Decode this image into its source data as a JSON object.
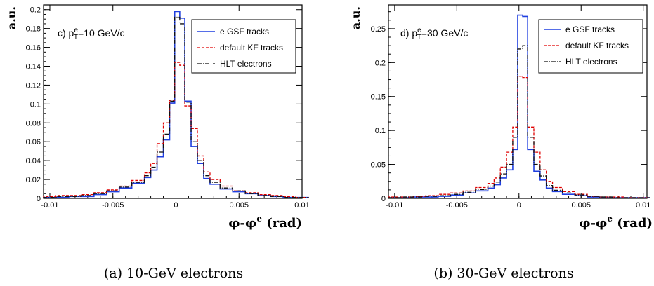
{
  "chart_data": [
    {
      "type": "line",
      "panel": "c",
      "label_prefix": "c) p",
      "label_sup": "e",
      "label_sub": "T",
      "label_suffix": "=10 GeV/c",
      "ylabel": "a.u.",
      "xlabel": "φ-φ",
      "xlabel_sup": "e",
      "xlabel_unit": " (rad)",
      "caption": "(a) 10-GeV electrons",
      "xlim": [
        -0.0105,
        0.01
      ],
      "ylim": [
        0,
        0.205
      ],
      "xticks": [
        -0.01,
        -0.005,
        0,
        0.005,
        0.01
      ],
      "xtick_labels": [
        "-0.01",
        "-0.005",
        "0",
        "0.005",
        "0.01"
      ],
      "yticks": [
        0,
        0.02,
        0.04,
        0.06,
        0.08,
        0.1,
        0.12,
        0.14,
        0.16,
        0.18,
        0.2
      ],
      "ytick_labels": [
        "0",
        "0.02",
        "0.04",
        "0.06",
        "0.08",
        "0.1",
        "0.12",
        "0.14",
        "0.16",
        "0.18",
        "0.2"
      ],
      "bin_edges": [
        -0.0105,
        -0.0095,
        -0.0085,
        -0.0075,
        -0.0065,
        -0.0055,
        -0.0045,
        -0.0035,
        -0.0025,
        -0.002,
        -0.0015,
        -0.001,
        -0.0005,
        -0.0001,
        0.0003,
        0.0007,
        0.0012,
        0.0017,
        0.0022,
        0.0027,
        0.0035,
        0.0045,
        0.0055,
        0.0065,
        0.0075,
        0.0085,
        0.0095,
        0.0105
      ],
      "legend": [
        "e GSF tracks",
        "default KF tracks",
        "HLT electrons"
      ],
      "series": [
        {
          "name": "e GSF tracks",
          "color": "#1f3fe0",
          "dash": "",
          "values": [
            0.001,
            0.001,
            0.002,
            0.002,
            0.004,
            0.007,
            0.011,
            0.016,
            0.022,
            0.03,
            0.044,
            0.062,
            0.101,
            0.198,
            0.191,
            0.103,
            0.055,
            0.037,
            0.021,
            0.015,
            0.01,
            0.007,
            0.005,
            0.003,
            0.002,
            0.001,
            0.001
          ]
        },
        {
          "name": "default KF tracks",
          "color": "#e00000",
          "dash": "4,2",
          "values": [
            0.002,
            0.003,
            0.003,
            0.004,
            0.006,
            0.009,
            0.013,
            0.019,
            0.027,
            0.037,
            0.058,
            0.08,
            0.104,
            0.144,
            0.141,
            0.098,
            0.074,
            0.045,
            0.028,
            0.02,
            0.013,
            0.008,
            0.006,
            0.004,
            0.003,
            0.002,
            0.001
          ]
        },
        {
          "name": "HLT electrons",
          "color": "#111111",
          "dash": "6,2,1,2",
          "values": [
            0.001,
            0.002,
            0.002,
            0.003,
            0.005,
            0.008,
            0.012,
            0.017,
            0.024,
            0.033,
            0.049,
            0.068,
            0.103,
            0.192,
            0.185,
            0.102,
            0.06,
            0.04,
            0.024,
            0.017,
            0.011,
            0.008,
            0.005,
            0.003,
            0.002,
            0.001,
            0.001
          ]
        }
      ]
    },
    {
      "type": "line",
      "panel": "d",
      "label_prefix": "d) p",
      "label_sup": "e",
      "label_sub": "T",
      "label_suffix": "=30 GeV/c",
      "ylabel": "a.u.",
      "xlabel": "φ-φ",
      "xlabel_sup": "e",
      "xlabel_unit": " (rad)",
      "caption": "(b) 30-GeV electrons",
      "xlim": [
        -0.0105,
        0.0103
      ],
      "ylim": [
        0,
        0.285
      ],
      "xticks": [
        -0.01,
        -0.005,
        0,
        0.005,
        0.01
      ],
      "xtick_labels": [
        "-0.01",
        "-0.005",
        "0",
        "0.005",
        "0.01"
      ],
      "yticks": [
        0,
        0.05,
        0.1,
        0.15,
        0.2,
        0.25
      ],
      "ytick_labels": [
        "0",
        "0.05",
        "0.1",
        "0.15",
        "0.2",
        "0.25"
      ],
      "bin_edges": [
        -0.0105,
        -0.0095,
        -0.0085,
        -0.0075,
        -0.0065,
        -0.0055,
        -0.0045,
        -0.0035,
        -0.0025,
        -0.002,
        -0.0015,
        -0.001,
        -0.0005,
        -0.0001,
        0.0003,
        0.0007,
        0.0012,
        0.0017,
        0.0022,
        0.0027,
        0.0035,
        0.0045,
        0.0055,
        0.0065,
        0.0075,
        0.0085,
        0.0095,
        0.0105
      ],
      "legend": [
        "e GSF tracks",
        "default KF tracks",
        "HLT electrons"
      ],
      "series": [
        {
          "name": "e GSF tracks",
          "color": "#1f3fe0",
          "dash": "",
          "values": [
            0.001,
            0.001,
            0.002,
            0.002,
            0.003,
            0.005,
            0.008,
            0.011,
            0.015,
            0.02,
            0.03,
            0.042,
            0.072,
            0.27,
            0.268,
            0.072,
            0.04,
            0.027,
            0.015,
            0.01,
            0.006,
            0.004,
            0.002,
            0.001,
            0.001,
            0.001,
            0.001
          ]
        },
        {
          "name": "default KF tracks",
          "color": "#e00000",
          "dash": "4,2",
          "values": [
            0.002,
            0.002,
            0.003,
            0.004,
            0.006,
            0.008,
            0.011,
            0.016,
            0.022,
            0.03,
            0.046,
            0.068,
            0.105,
            0.18,
            0.178,
            0.105,
            0.068,
            0.042,
            0.025,
            0.016,
            0.01,
            0.006,
            0.003,
            0.002,
            0.002,
            0.001,
            0.001
          ]
        },
        {
          "name": "HLT electrons",
          "color": "#111111",
          "dash": "6,2,1,2",
          "values": [
            0.001,
            0.002,
            0.002,
            0.003,
            0.004,
            0.006,
            0.009,
            0.013,
            0.018,
            0.024,
            0.036,
            0.05,
            0.09,
            0.22,
            0.225,
            0.09,
            0.05,
            0.033,
            0.019,
            0.012,
            0.008,
            0.005,
            0.003,
            0.002,
            0.001,
            0.001,
            0.001
          ]
        }
      ]
    }
  ]
}
